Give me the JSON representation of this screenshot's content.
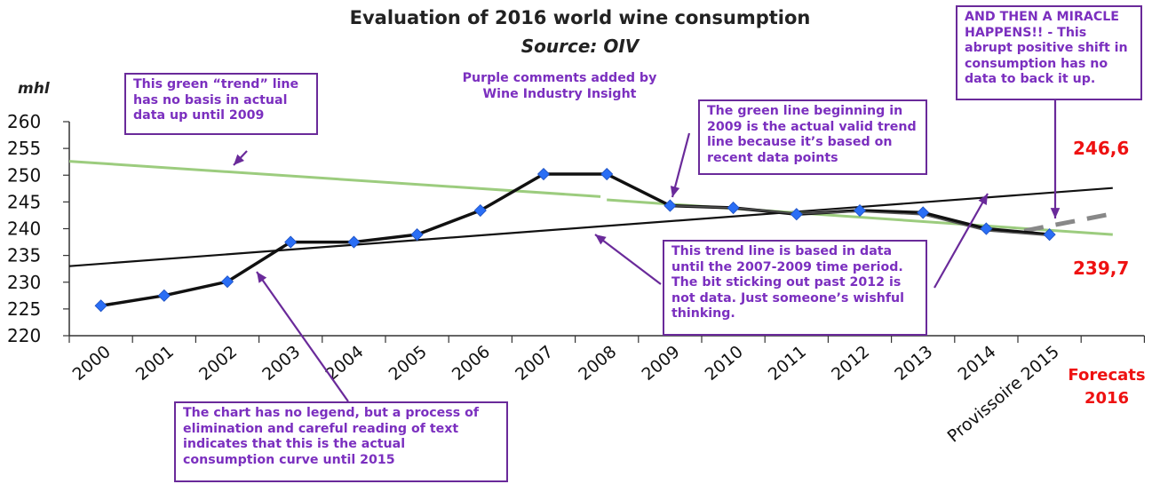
{
  "header": {
    "title": "Evaluation of 2016 world wine consumption",
    "subtitle": "Source: OIV"
  },
  "note": "Purple comments added by Wine Industry Insight",
  "comments": [
    "This green “trend” line has no basis in actual data up until 2009",
    "The green line beginning in 2009 is the actual valid trend line because it’s based on recent data points",
    "AND THEN A MIRACLE HAPPENS!! - This abrupt positive shift in consumption has no data to back it up.",
    "This trend line is based in data until the 2007-2009 time period. The bit sticking out past 2012 is not data. Just someone’s wishful thinking.",
    "The chart has no legend, but a process of elimination and careful reading of text indicates that this is the actual consumption curve until 2015"
  ],
  "forecast_values": [
    "246,6",
    "239,7"
  ],
  "forecast_label": [
    "Forecats",
    "2016"
  ],
  "colors": {
    "comment": "#7b2fbf",
    "comment_border": "#6a2a9a",
    "forecast": "#ee1111",
    "green_trend": "#9ccc7e",
    "actual_line": "#111111",
    "marker": "#2a6ef5",
    "dashed": "#888888"
  },
  "chart_data": {
    "type": "line",
    "ylabel": "mhl",
    "ylim": [
      220,
      260
    ],
    "yticks": [
      220,
      225,
      230,
      235,
      240,
      245,
      250,
      255,
      260
    ],
    "grid": false,
    "legend": "none",
    "categories": [
      "2000",
      "2001",
      "2002",
      "2003",
      "2004",
      "2005",
      "2006",
      "2007",
      "2008",
      "2009",
      "2010",
      "2011",
      "2012",
      "2013",
      "2014",
      "Provissoire 2015"
    ],
    "series": [
      {
        "style": "actual",
        "values": [
          225.6,
          227.5,
          230.1,
          237.5,
          237.5,
          238.9,
          243.4,
          250.2,
          250.2,
          244.3,
          243.9,
          242.7,
          243.4,
          243.0,
          240.0,
          238.9
        ]
      },
      {
        "style": "grey-thin",
        "values": [
          null,
          null,
          null,
          null,
          null,
          null,
          null,
          null,
          null,
          244.3,
          243.9,
          242.8,
          243.2,
          242.6,
          239.6,
          238.7
        ]
      }
    ],
    "trend_lines": [
      {
        "style": "black-linear",
        "from": {
          "x": 0,
          "y": 233.0
        },
        "to": {
          "x": 16.5,
          "y": 247.6
        }
      },
      {
        "style": "green-early",
        "from": {
          "x": 0,
          "y": 252.6
        },
        "to": {
          "x": 8.4,
          "y": 246.0
        }
      },
      {
        "style": "green-recent",
        "from": {
          "x": 8.5,
          "y": 245.4
        },
        "to": {
          "x": 16.5,
          "y": 238.9
        }
      },
      {
        "style": "grey-dashed-forecast",
        "from": {
          "x": 15.1,
          "y": 239.6
        },
        "to": {
          "x": 16.5,
          "y": 242.8
        }
      }
    ]
  }
}
